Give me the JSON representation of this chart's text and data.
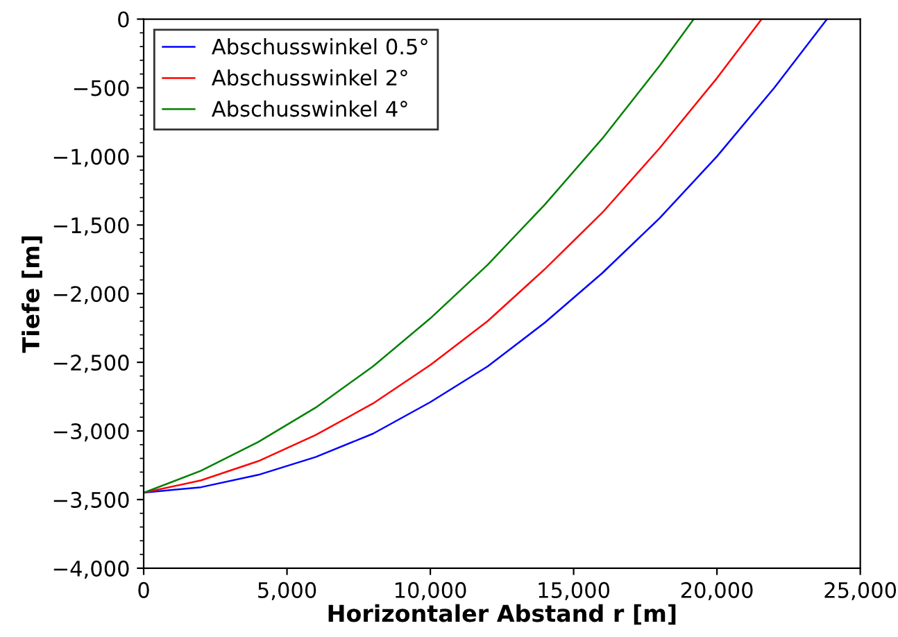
{
  "chart_data": {
    "type": "line",
    "xlabel": "Horizontaler Abstand r [m]",
    "ylabel": "Tiefe [m]",
    "xlim": [
      0,
      25000
    ],
    "ylim": [
      -4000,
      0
    ],
    "xticks": [
      0,
      {
        "value": 5000,
        "label": "5,000"
      },
      {
        "value": 10000,
        "label": "10,000"
      },
      {
        "value": 15000,
        "label": "15,000"
      },
      {
        "value": 20000,
        "label": "20,000"
      },
      {
        "value": 25000,
        "label": "25,000"
      }
    ],
    "yticks": [
      {
        "value": -4000,
        "label": "−4,000"
      },
      {
        "value": -3500,
        "label": "−3,500"
      },
      {
        "value": -3000,
        "label": "−3,000"
      },
      {
        "value": -2500,
        "label": "−2,500"
      },
      {
        "value": -2000,
        "label": "−2,000"
      },
      {
        "value": -1500,
        "label": "−1,500"
      },
      {
        "value": -1000,
        "label": "−1,000"
      },
      {
        "value": -500,
        "label": "−500"
      },
      0
    ],
    "grid": false,
    "legend": "top left",
    "marker": "none",
    "line_style": "solid",
    "series": [
      {
        "name": "Abschusswinkel 0.5°",
        "color": "#0000ff",
        "x": [
          0,
          2000,
          4000,
          6000,
          8000,
          10000,
          12000,
          14000,
          16000,
          18000,
          20000,
          22000,
          23840
        ],
        "values": [
          -3450,
          -3410,
          -3320,
          -3190,
          -3020,
          -2790,
          -2530,
          -2210,
          -1850,
          -1450,
          -1000,
          -500,
          0
        ]
      },
      {
        "name": "Abschusswinkel 2°",
        "color": "#ff0000",
        "x": [
          0,
          2000,
          4000,
          6000,
          8000,
          10000,
          12000,
          14000,
          16000,
          18000,
          20000,
          21560
        ],
        "values": [
          -3450,
          -3360,
          -3220,
          -3030,
          -2800,
          -2520,
          -2200,
          -1820,
          -1410,
          -940,
          -430,
          0
        ]
      },
      {
        "name": "Abschusswinkel 4°",
        "color": "#008000",
        "x": [
          0,
          2000,
          4000,
          6000,
          8000,
          10000,
          12000,
          14000,
          16000,
          18000,
          19190
        ],
        "values": [
          -3450,
          -3290,
          -3080,
          -2830,
          -2530,
          -2180,
          -1790,
          -1350,
          -870,
          -340,
          0
        ]
      }
    ]
  }
}
